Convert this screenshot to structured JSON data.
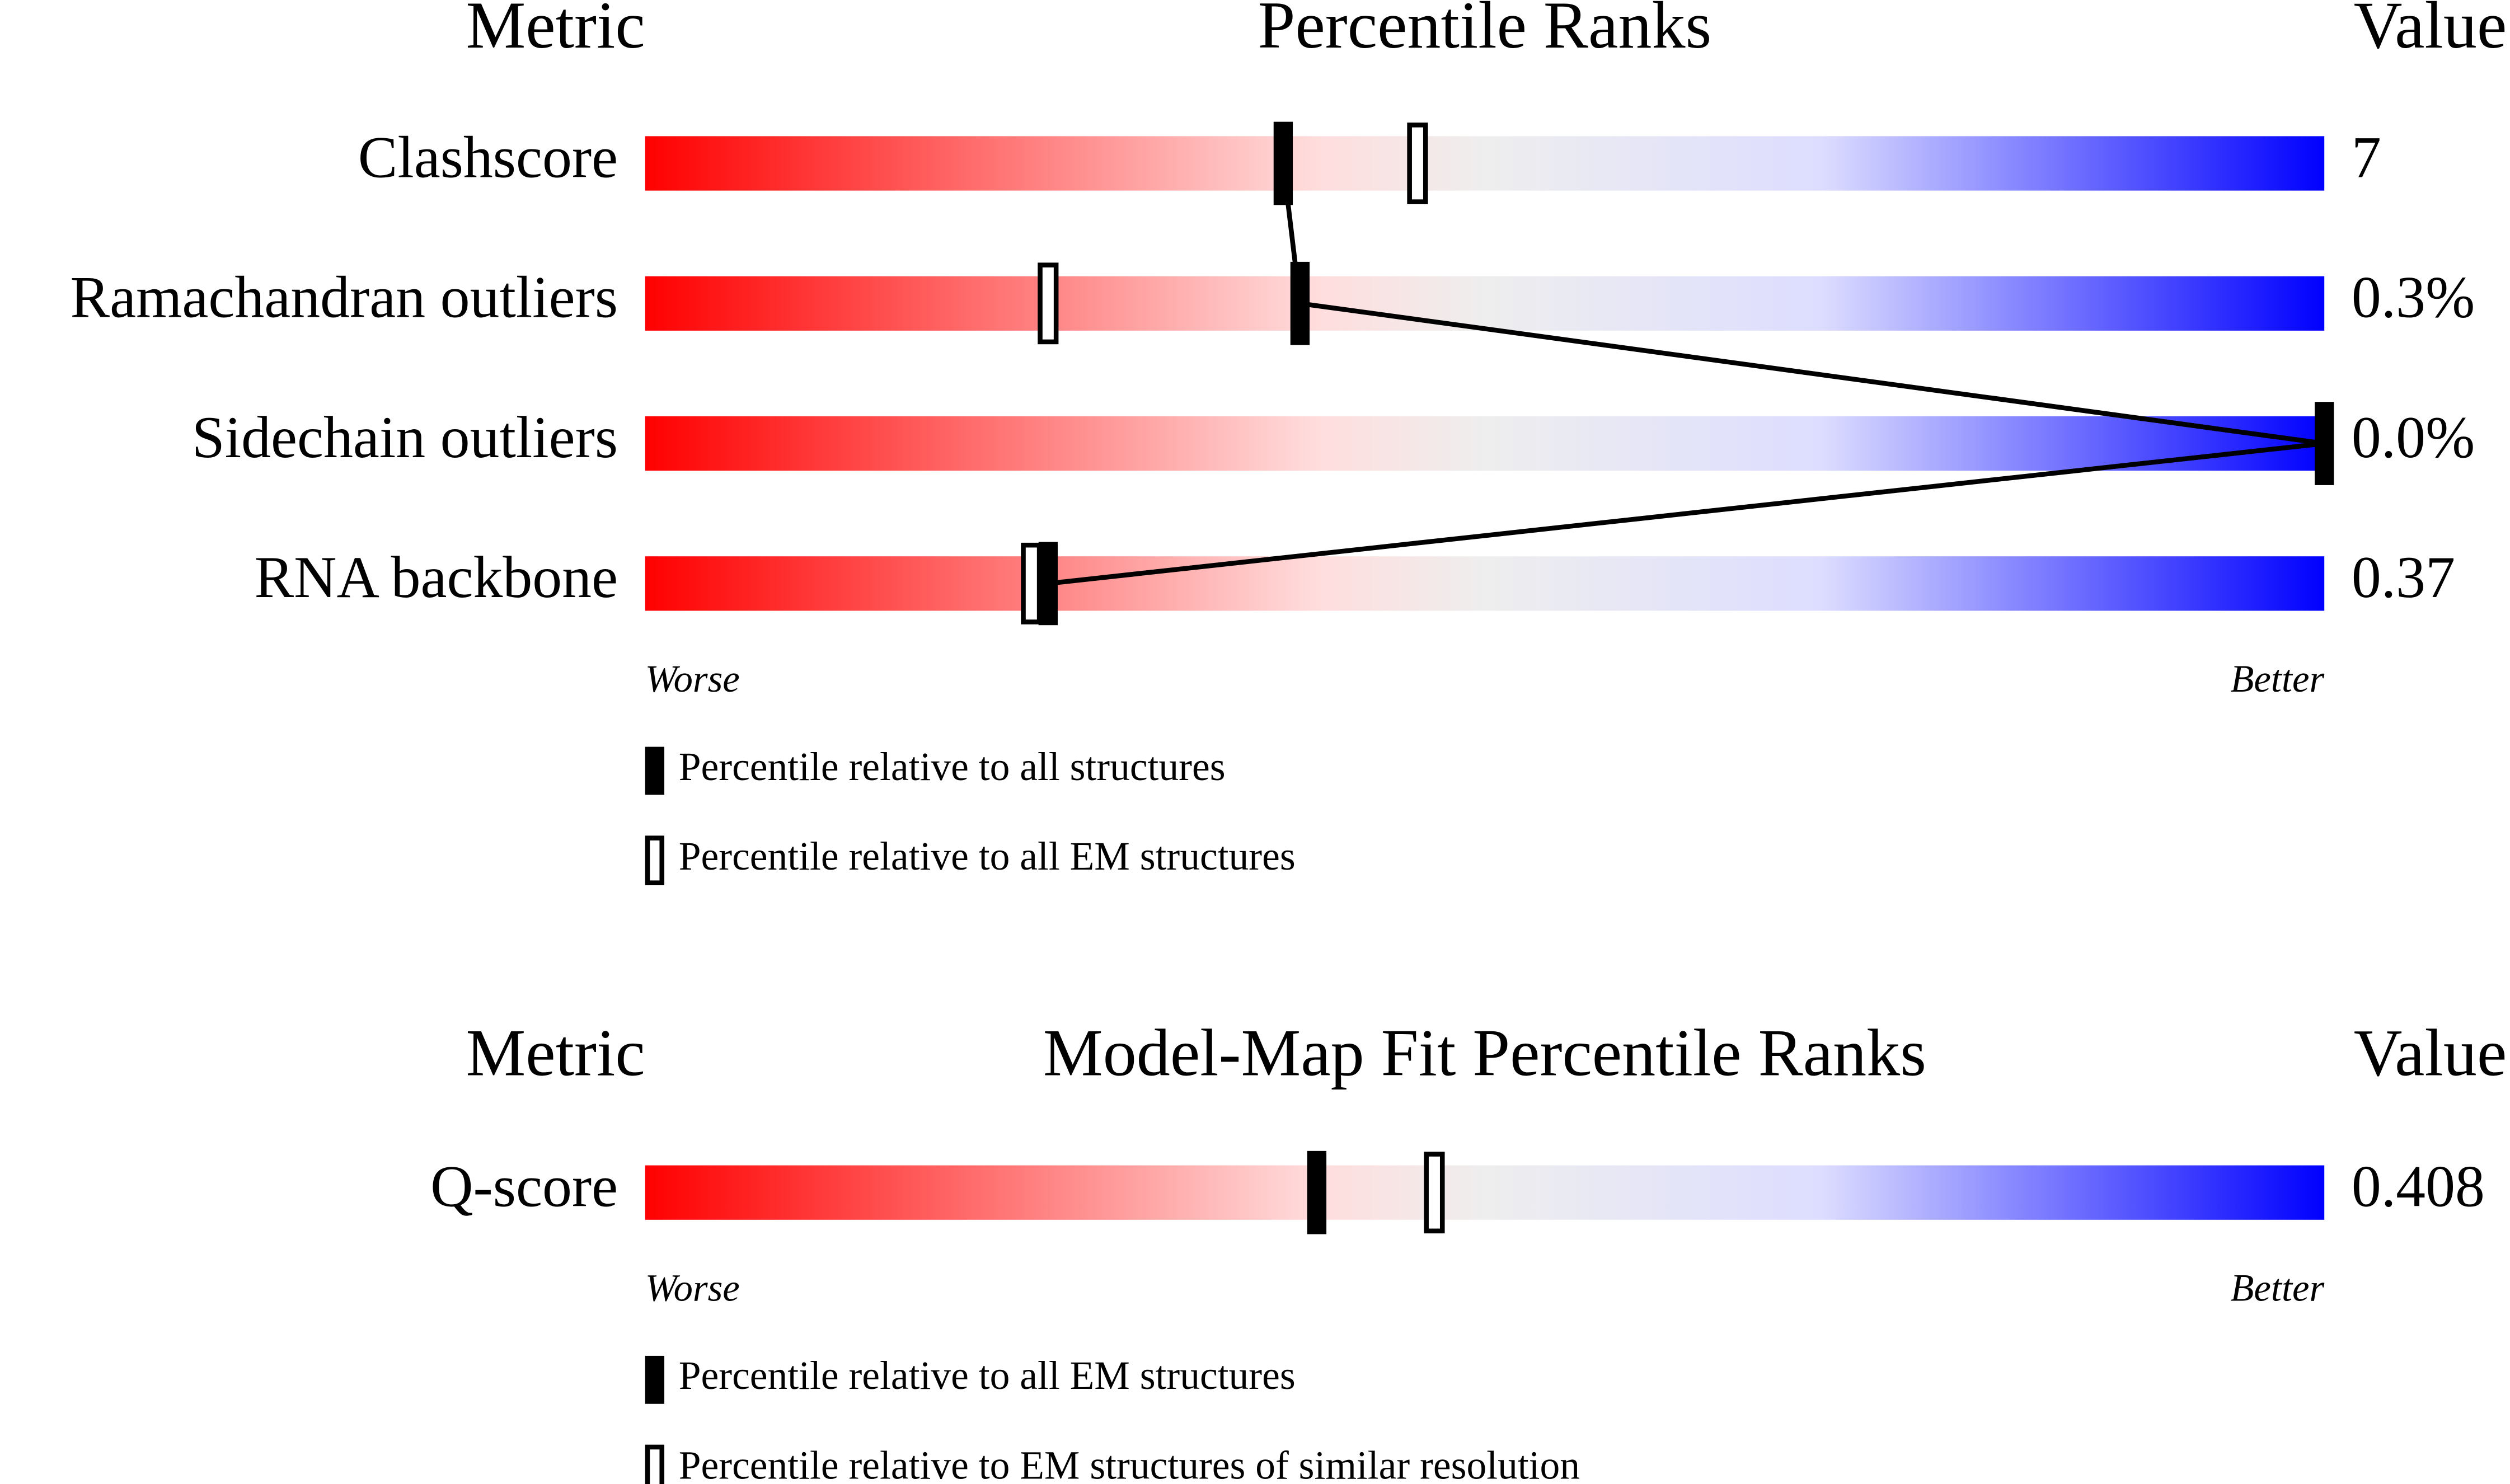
{
  "chart_data": [
    {
      "type": "percentile-slider",
      "header": {
        "metric": "Metric",
        "title": "Percentile Ranks",
        "value": "Value"
      },
      "categories": [
        "Clashscore",
        "Ramachandran outliers",
        "Sidechain outliers",
        "RNA backbone"
      ],
      "metric_values": [
        "7",
        "0.3%",
        "0.0%",
        "0.37"
      ],
      "xlim": [
        0,
        100
      ],
      "worse": "Worse",
      "better": "Better",
      "gradient": [
        "#ff0000",
        "#ffdddd",
        "#eeeeee",
        "#ddddff",
        "#0000ff"
      ],
      "connector": true,
      "series": [
        {
          "name": "Percentile relative to all structures",
          "style": "filled",
          "color": "#000000",
          "values": [
            38,
            39,
            100,
            24
          ]
        },
        {
          "name": "Percentile relative to all EM structures",
          "style": "hollow",
          "color": "#000000",
          "values": [
            46,
            24,
            null,
            23
          ]
        }
      ]
    },
    {
      "type": "percentile-slider",
      "header": {
        "metric": "Metric",
        "title": "Model-Map Fit Percentile Ranks",
        "value": "Value"
      },
      "categories": [
        "Q-score"
      ],
      "metric_values": [
        "0.408"
      ],
      "xlim": [
        0,
        100
      ],
      "worse": "Worse",
      "better": "Better",
      "gradient": [
        "#ff0000",
        "#ffdddd",
        "#eeeeee",
        "#ddddff",
        "#0000ff"
      ],
      "connector": true,
      "series": [
        {
          "name": "Percentile relative to all EM structures",
          "style": "filled",
          "color": "#000000",
          "values": [
            40
          ]
        },
        {
          "name": "Percentile relative to EM structures of similar resolution",
          "style": "hollow",
          "color": "#000000",
          "values": [
            47
          ]
        }
      ]
    }
  ]
}
